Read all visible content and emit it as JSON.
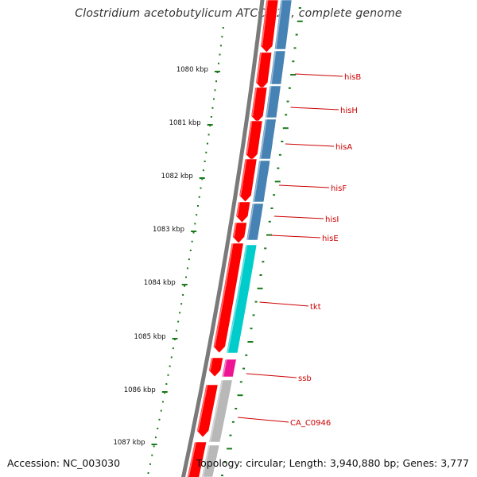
{
  "title": "Clostridium acetobutylicum ATCC 824, complete genome",
  "footer": {
    "accession": "Accession: NC_003030",
    "topology": "Topology: circular; Length: 3,940,880 bp; Genes: 3,777"
  },
  "colors": {
    "background": "#ffffff",
    "backbone": "#7a7a7a",
    "cds_red": "#ff0000",
    "cds_blue": "#4682b4",
    "cds_cyan": "#00cccc",
    "cds_magenta": "#ee1493",
    "cds_gray": "#b8b8b8",
    "tick": "#1a7a1a",
    "gene_label": "#cc0000",
    "scale_label": "#111111"
  },
  "scale_labels": [
    "1080 kbp",
    "1081 kbp",
    "1082 kbp",
    "1083 kbp",
    "1084 kbp",
    "1085 kbp",
    "1086 kbp",
    "1087 kbp"
  ],
  "gene_labels": [
    "hisB",
    "hisH",
    "hisA",
    "hisF",
    "hisI",
    "hisE",
    "tkt",
    "ssb",
    "CA_C0946"
  ]
}
